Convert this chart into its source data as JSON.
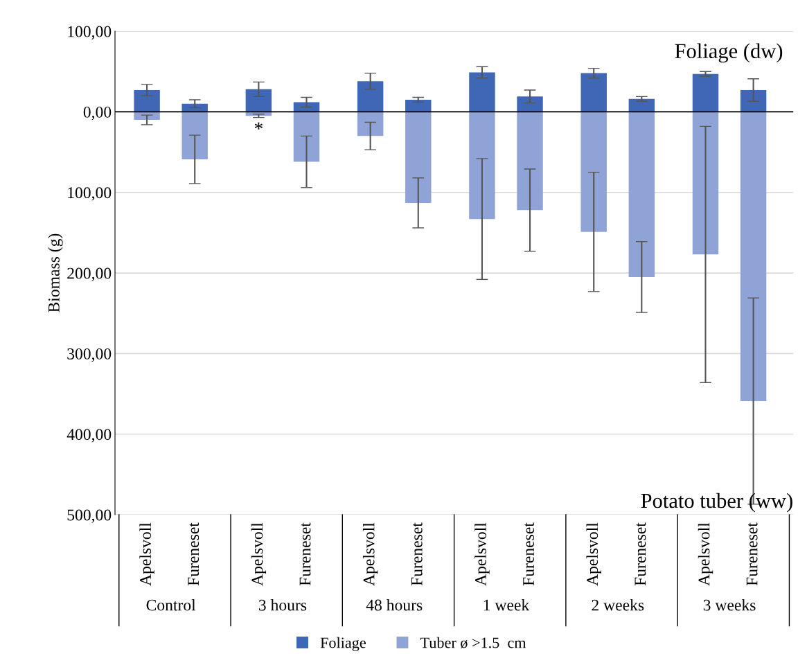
{
  "chart_data": {
    "type": "bar",
    "stacked": true,
    "ylabel": "Biomass (g)",
    "categories": [
      "Apelsvoll",
      "Fureneset",
      "Apelsvoll",
      "Fureneset",
      "Apelsvoll",
      "Fureneset",
      "Apelsvoll",
      "Fureneset",
      "Apelsvoll",
      "Fureneset",
      "Apelsvoll",
      "Fureneset"
    ],
    "series": [
      {
        "name": "Foliage",
        "color": "#3f67b5",
        "values": [
          27,
          10,
          28,
          12,
          38,
          15,
          49,
          19,
          48,
          16,
          47,
          27
        ],
        "errors": [
          7,
          5,
          9,
          6,
          10,
          3,
          7,
          8,
          6,
          3,
          3,
          14
        ]
      },
      {
        "name": "Tuber ø >1.5  cm",
        "color": "#8fa3d6",
        "values": [
          -10,
          -59,
          -5,
          -62,
          -30,
          -113,
          -133,
          -122,
          -149,
          -205,
          -177,
          -359
        ],
        "errors": [
          6,
          30,
          2,
          32,
          17,
          31,
          75,
          51,
          74,
          44,
          159,
          128
        ]
      }
    ],
    "ylim": [
      -500,
      100
    ],
    "yticks": [
      {
        "value": -500,
        "label": "500,00"
      },
      {
        "value": -400,
        "label": "400,00"
      },
      {
        "value": -300,
        "label": "300,00"
      },
      {
        "value": -200,
        "label": "200,00"
      },
      {
        "value": -100,
        "label": "100,00"
      },
      {
        "value": 0,
        "label": "0,00"
      },
      {
        "value": 100,
        "label": "100,00"
      }
    ],
    "grid": "y",
    "legend": "bottom",
    "annotations": [
      "Control",
      "3 hours",
      "48 hours",
      "1 week",
      "2 weeks",
      "3 weeks",
      "Foliage (dw)",
      "Potato tuber (ww)",
      "*"
    ]
  }
}
